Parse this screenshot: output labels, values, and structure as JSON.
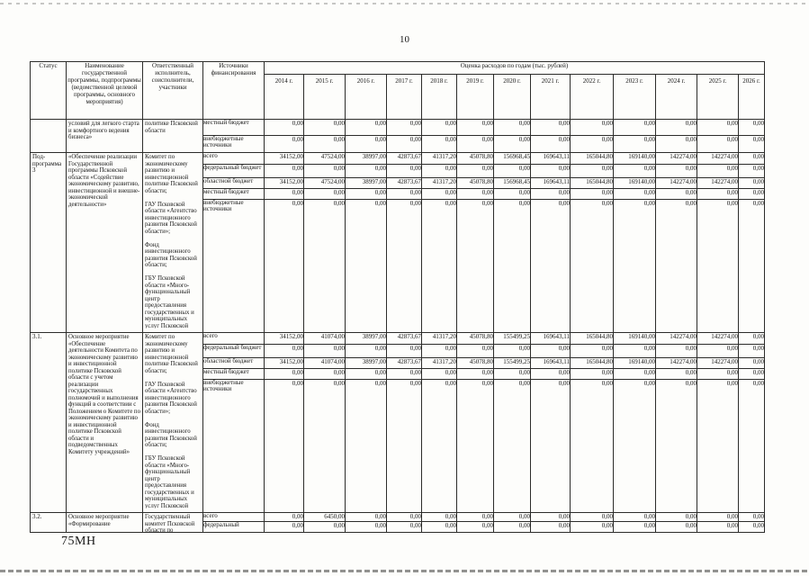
{
  "page": {
    "number": "10",
    "footer_left": "75МН"
  },
  "table": {
    "header": {
      "status": "Статус",
      "name": "Наименование государственной программы, подпрограммы (ведомственной целевой программы, основного мероприятия)",
      "executor": "Ответственный исполнитель, соисполнители, участники",
      "source": "Источники финансирования",
      "estimate": "Оценка расходов по годам (тыс. рублей)",
      "years": [
        "2014 г.",
        "2015 г.",
        "2016 г.",
        "2017 г.",
        "2018 г.",
        "2019 г.",
        "2020 г.",
        "2021 г.",
        "2022 г.",
        "2023 г.",
        "2024 г.",
        "2025 г.",
        "2026 г."
      ]
    },
    "rows": [
      {
        "status": "",
        "name": "условий для легкого старта и комфортного ведения бизнеса»",
        "executor": "политике Псковской области",
        "lines": [
          {
            "source": "местный бюджет",
            "values": [
              "0,00",
              "0,00",
              "0,00",
              "0,00",
              "0,00",
              "0,00",
              "0,00",
              "0,00",
              "0,00",
              "0,00",
              "0,00",
              "0,00",
              "0,00"
            ]
          },
          {
            "source": "внебюджетные источники",
            "values": [
              "0,00",
              "0,00",
              "0,00",
              "0,00",
              "0,00",
              "0,00",
              "0,00",
              "0,00",
              "0,00",
              "0,00",
              "0,00",
              "0,00",
              "0,00"
            ]
          }
        ]
      },
      {
        "status": "Под-\nпрограмма 3",
        "name": "«Обеспечение реализации Государственной программы Псковской области «Содействие экономическому развитию, инвестиционной и внешне-экономической деятельности»",
        "executor": "Комитет по экономическому развитию и инвестиционной политике Псковской области;\n\nГАУ Псковской области «Агентство инвестиционного развития Псковской области»;\n\nФонд инвестиционного развития Псковской области;\n\nГБУ Псковской области «Много-функциональный центр предоставления государственных и муниципальных услуг Псковской области»",
        "lines": [
          {
            "source": "всего",
            "values": [
              "34152,00",
              "47524,00",
              "38997,00",
              "42873,67",
              "41317,20",
              "45078,80",
              "156968,45",
              "169643,11",
              "165044,80",
              "169140,00",
              "142274,00",
              "142274,00",
              "0,00"
            ]
          },
          {
            "source": "федеральный бюджет",
            "values": [
              "0,00",
              "0,00",
              "0,00",
              "0,00",
              "0,00",
              "0,00",
              "0,00",
              "0,00",
              "0,00",
              "0,00",
              "0,00",
              "0,00",
              "0,00"
            ]
          },
          {
            "source": "областной бюджет",
            "values": [
              "34152,00",
              "47524,00",
              "38997,00",
              "42873,67",
              "41317,20",
              "45078,80",
              "156968,45",
              "169643,11",
              "165044,80",
              "169140,00",
              "142274,00",
              "142274,00",
              "0,00"
            ]
          },
          {
            "source": "местный бюджет",
            "values": [
              "0,00",
              "0,00",
              "0,00",
              "0,00",
              "0,00",
              "0,00",
              "0,00",
              "0,00",
              "0,00",
              "0,00",
              "0,00",
              "0,00",
              "0,00"
            ]
          },
          {
            "source": "внебюджетные источники",
            "values": [
              "0,00",
              "0,00",
              "0,00",
              "0,00",
              "0,00",
              "0,00",
              "0,00",
              "0,00",
              "0,00",
              "0,00",
              "0,00",
              "0,00",
              "0,00"
            ]
          }
        ]
      },
      {
        "status": "3.1.",
        "name": "Основное мероприятие «Обеспечение деятельности Комитета по экономическому развитию и инвестиционной политике Псковской области с учетом реализации государственных полномочий и выполнения функций в соответствии с Положением о Комитете по экономическому развитию и инвестиционной политике Псковской области и подведомственных Комитету учреждений»",
        "executor": "Комитет по экономическому развитию и инвестиционной политике Псковской области;\n\nГАУ Псковской области «Агентство инвестиционного развития Псковской области»;\n\nФонд инвестиционного развития Псковской области;\n\nГБУ Псковской области «Много-функциональный центр предоставления государственных и муниципальных услуг Псковской области»",
        "lines": [
          {
            "source": "всего",
            "values": [
              "34152,00",
              "41074,00",
              "38997,00",
              "42873,67",
              "41317,20",
              "45078,80",
              "155499,25",
              "169643,11",
              "165044,80",
              "169140,00",
              "142274,00",
              "142274,00",
              "0,00"
            ]
          },
          {
            "source": "федеральный бюджет",
            "values": [
              "0,00",
              "0,00",
              "0,00",
              "0,00",
              "0,00",
              "0,00",
              "0,00",
              "0,00",
              "0,00",
              "0,00",
              "0,00",
              "0,00",
              "0,00"
            ]
          },
          {
            "source": "областной бюджет",
            "values": [
              "34152,00",
              "41074,00",
              "38997,00",
              "42873,67",
              "41317,20",
              "45078,80",
              "155499,25",
              "169643,11",
              "165044,80",
              "169140,00",
              "142274,00",
              "142274,00",
              "0,00"
            ]
          },
          {
            "source": "местный бюджет",
            "values": [
              "0,00",
              "0,00",
              "0,00",
              "0,00",
              "0,00",
              "0,00",
              "0,00",
              "0,00",
              "0,00",
              "0,00",
              "0,00",
              "0,00",
              "0,00"
            ]
          },
          {
            "source": "внебюджетные источники",
            "values": [
              "0,00",
              "0,00",
              "0,00",
              "0,00",
              "0,00",
              "0,00",
              "0,00",
              "0,00",
              "0,00",
              "0,00",
              "0,00",
              "0,00",
              "0,00"
            ]
          }
        ]
      },
      {
        "status": "3.2.",
        "name": "Основное мероприятие «Формирование",
        "executor": "Государственный комитет Псковской области по",
        "lines": [
          {
            "source": "всего",
            "values": [
              "0,00",
              "6450,00",
              "0,00",
              "0,00",
              "0,00",
              "0,00",
              "0,00",
              "0,00",
              "0,00",
              "0,00",
              "0,00",
              "0,00",
              "0,00"
            ]
          },
          {
            "source": "федеральный",
            "values": [
              "0,00",
              "0,00",
              "0,00",
              "0,00",
              "0,00",
              "0,00",
              "0,00",
              "0,00",
              "0,00",
              "0,00",
              "0,00",
              "0,00",
              "0,00"
            ]
          }
        ]
      }
    ]
  }
}
